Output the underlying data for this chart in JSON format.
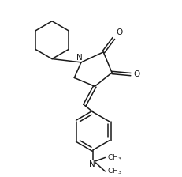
{
  "bg_color": "#ffffff",
  "line_color": "#1a1a1a",
  "line_width": 1.1,
  "fig_width": 2.32,
  "fig_height": 2.24,
  "dpi": 100,
  "xlim": [
    0,
    100
  ],
  "ylim": [
    0,
    100
  ]
}
